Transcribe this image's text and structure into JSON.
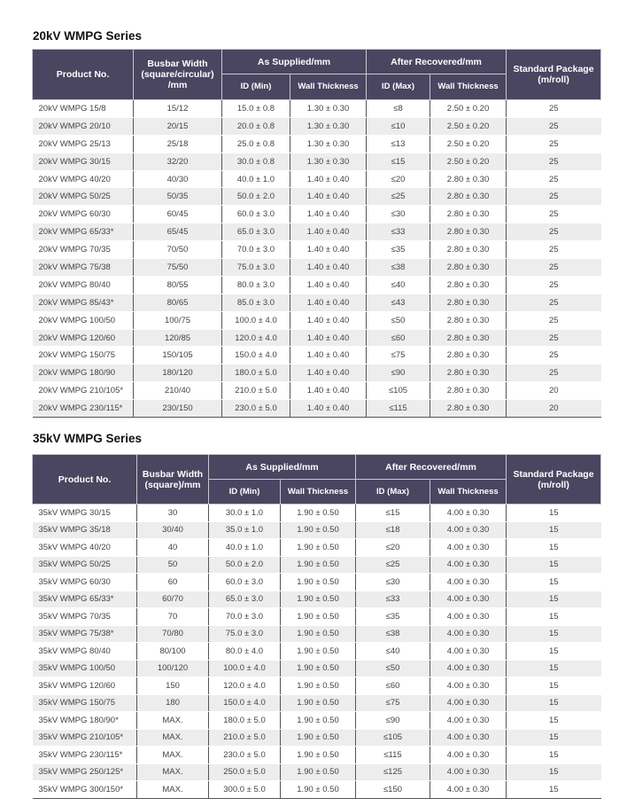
{
  "series": [
    {
      "title": "20kV WMPG Series",
      "headers": {
        "product": "Product No.",
        "busbar": "Busbar Width (square/circular) /mm",
        "as_supplied": "As Supplied/mm",
        "after_recovered": "After Recovered/mm",
        "package": "Standard Package (m/roll)",
        "id_min": "ID  (Min)",
        "wall1": "Wall Thickness",
        "id_max": "ID (Max)",
        "wall2": "Wall Thickness"
      },
      "rows": [
        [
          "20kV WMPG 15/8",
          "15/12",
          "15.0 ± 0.8",
          "1.30 ± 0.30",
          "≤8",
          "2.50 ± 0.20",
          "25"
        ],
        [
          "20kV WMPG 20/10",
          "20/15",
          "20.0 ± 0.8",
          "1.30 ± 0.30",
          "≤10",
          "2.50 ± 0.20",
          "25"
        ],
        [
          "20kV WMPG 25/13",
          "25/18",
          "25.0 ± 0.8",
          "1.30 ± 0.30",
          "≤13",
          "2.50 ± 0.20",
          "25"
        ],
        [
          "20kV WMPG 30/15",
          "32/20",
          "30.0 ± 0.8",
          "1.30 ± 0.30",
          "≤15",
          "2.50 ± 0.20",
          "25"
        ],
        [
          "20kV WMPG 40/20",
          "40/30",
          "40.0 ± 1.0",
          "1.40 ± 0.40",
          "≤20",
          "2.80 ± 0.30",
          "25"
        ],
        [
          "20kV WMPG 50/25",
          "50/35",
          "50.0 ± 2.0",
          "1.40 ± 0.40",
          "≤25",
          "2.80 ± 0.30",
          "25"
        ],
        [
          "20kV WMPG 60/30",
          "60/45",
          "60.0 ± 3.0",
          "1.40 ± 0.40",
          "≤30",
          "2.80 ± 0.30",
          "25"
        ],
        [
          "20kV WMPG 65/33*",
          "65/45",
          "65.0 ± 3.0",
          "1.40 ± 0.40",
          "≤33",
          "2.80 ± 0.30",
          "25"
        ],
        [
          "20kV WMPG 70/35",
          "70/50",
          "70.0 ± 3.0",
          "1.40 ± 0.40",
          "≤35",
          "2.80 ± 0.30",
          "25"
        ],
        [
          "20kV WMPG 75/38",
          "75/50",
          "75.0 ± 3.0",
          "1.40 ± 0.40",
          "≤38",
          "2.80 ± 0.30",
          "25"
        ],
        [
          "20kV WMPG 80/40",
          "80/55",
          "80.0 ± 3.0",
          "1.40 ± 0.40",
          "≤40",
          "2.80 ± 0.30",
          "25"
        ],
        [
          "20kV WMPG 85/43*",
          "80/65",
          "85.0 ± 3.0",
          "1.40 ± 0.40",
          "≤43",
          "2.80 ± 0.30",
          "25"
        ],
        [
          "20kV WMPG 100/50",
          "100/75",
          "100.0 ± 4.0",
          "1.40 ± 0.40",
          "≤50",
          "2.80 ± 0.30",
          "25"
        ],
        [
          "20kV WMPG 120/60",
          "120/85",
          "120.0 ± 4.0",
          "1.40 ± 0.40",
          "≤60",
          "2.80 ± 0.30",
          "25"
        ],
        [
          "20kV WMPG 150/75",
          "150/105",
          "150.0 ± 4.0",
          "1.40 ± 0.40",
          "≤75",
          "2.80 ± 0.30",
          "25"
        ],
        [
          "20kV WMPG 180/90",
          "180/120",
          "180.0 ± 5.0",
          "1.40 ± 0.40",
          "≤90",
          "2.80 ± 0.30",
          "25"
        ],
        [
          "20kV WMPG 210/105*",
          "210/40",
          "210.0 ± 5.0",
          "1.40 ± 0.40",
          "≤105",
          "2.80 ± 0.30",
          "20"
        ],
        [
          "20kV WMPG 230/115*",
          "230/150",
          "230.0 ± 5.0",
          "1.40 ± 0.40",
          "≤115",
          "2.80 ± 0.30",
          "20"
        ]
      ]
    },
    {
      "title": "35kV WMPG Series",
      "headers": {
        "product": "Product No.",
        "busbar": "Busbar Width (square)/mm",
        "as_supplied": "As Supplied/mm",
        "after_recovered": "After Recovered/mm",
        "package": "Standard Package (m/roll)",
        "id_min": "ID  (Min)",
        "wall1": "Wall Thickness",
        "id_max": "ID (Max)",
        "wall2": "Wall Thickness"
      },
      "rows": [
        [
          "35kV WMPG 30/15",
          "30",
          "30.0 ± 1.0",
          "1.90 ± 0.50",
          "≤15",
          "4.00 ± 0.30",
          "15"
        ],
        [
          "35kV WMPG 35/18",
          "30/40",
          "35.0 ± 1.0",
          "1.90 ± 0.50",
          "≤18",
          "4.00 ± 0.30",
          "15"
        ],
        [
          "35kV WMPG 40/20",
          "40",
          "40.0 ± 1.0",
          "1.90 ± 0.50",
          "≤20",
          "4.00 ± 0.30",
          "15"
        ],
        [
          "35kV WMPG 50/25",
          "50",
          "50.0 ± 2.0",
          "1.90 ± 0.50",
          "≤25",
          "4.00 ± 0.30",
          "15"
        ],
        [
          "35kV WMPG 60/30",
          "60",
          "60.0 ± 3.0",
          "1.90 ± 0.50",
          "≤30",
          "4.00 ± 0.30",
          "15"
        ],
        [
          "35kV WMPG 65/33*",
          "60/70",
          "65.0 ± 3.0",
          "1.90 ± 0.50",
          "≤33",
          "4.00 ± 0.30",
          "15"
        ],
        [
          "35kV WMPG 70/35",
          "70",
          "70.0 ± 3.0",
          "1.90 ± 0.50",
          "≤35",
          "4.00 ± 0.30",
          "15"
        ],
        [
          "35kV WMPG 75/38*",
          "70/80",
          "75.0 ± 3.0",
          "1.90 ± 0.50",
          "≤38",
          "4.00 ± 0.30",
          "15"
        ],
        [
          "35kV WMPG 80/40",
          "80/100",
          "80.0 ± 4.0",
          "1.90 ± 0.50",
          "≤40",
          "4.00 ± 0.30",
          "15"
        ],
        [
          "35kV WMPG 100/50",
          "100/120",
          "100.0 ± 4.0",
          "1.90 ± 0.50",
          "≤50",
          "4.00 ± 0.30",
          "15"
        ],
        [
          "35kV WMPG 120/60",
          "150",
          "120.0 ± 4.0",
          "1.90 ± 0.50",
          "≤60",
          "4.00 ± 0.30",
          "15"
        ],
        [
          "35kV WMPG 150/75",
          "180",
          "150.0 ± 4.0",
          "1.90 ± 0.50",
          "≤75",
          "4.00 ± 0.30",
          "15"
        ],
        [
          "35kV WMPG 180/90*",
          "MAX.",
          "180.0 ± 5.0",
          "1.90 ± 0.50",
          "≤90",
          "4.00 ± 0.30",
          "15"
        ],
        [
          "35kV WMPG 210/105*",
          "MAX.",
          "210.0 ± 5.0",
          "1.90 ± 0.50",
          "≤105",
          "4.00 ± 0.30",
          "15"
        ],
        [
          "35kV WMPG 230/115*",
          "MAX.",
          "230.0 ± 5.0",
          "1.90 ± 0.50",
          "≤115",
          "4.00 ± 0.30",
          "15"
        ],
        [
          "35kV WMPG 250/125*",
          "MAX.",
          "250.0 ± 5.0",
          "1.90 ± 0.50",
          "≤125",
          "4.00 ± 0.30",
          "15"
        ],
        [
          "35kV WMPG 300/150*",
          "MAX.",
          "300.0 ± 5.0",
          "1.90 ± 0.50",
          "≤150",
          "4.00 ± 0.30",
          "15"
        ]
      ]
    }
  ]
}
